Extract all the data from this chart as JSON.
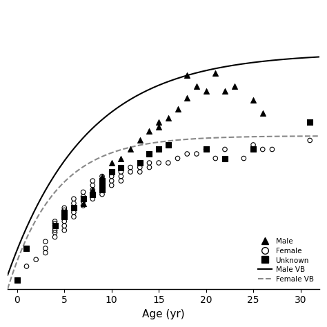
{
  "title": "",
  "xlabel": "Age (yr)",
  "ylabel": "",
  "xlim": [
    -1,
    32
  ],
  "ylim": [
    0,
    125
  ],
  "xticks": [
    0,
    5,
    10,
    15,
    20,
    25,
    30
  ],
  "background_color": "#ffffff",
  "male_points": [
    [
      7,
      38
    ],
    [
      8,
      44
    ],
    [
      9,
      50
    ],
    [
      10,
      52
    ],
    [
      10,
      56
    ],
    [
      11,
      58
    ],
    [
      12,
      62
    ],
    [
      13,
      66
    ],
    [
      14,
      70
    ],
    [
      15,
      72
    ],
    [
      15,
      74
    ],
    [
      16,
      76
    ],
    [
      17,
      80
    ],
    [
      18,
      85
    ],
    [
      18,
      95
    ],
    [
      19,
      90
    ],
    [
      20,
      88
    ],
    [
      21,
      96
    ],
    [
      22,
      88
    ],
    [
      23,
      90
    ],
    [
      25,
      84
    ],
    [
      26,
      78
    ]
  ],
  "female_points": [
    [
      1,
      10
    ],
    [
      2,
      13
    ],
    [
      3,
      16
    ],
    [
      3,
      18
    ],
    [
      3,
      21
    ],
    [
      4,
      23
    ],
    [
      4,
      25
    ],
    [
      4,
      26
    ],
    [
      4,
      28
    ],
    [
      4,
      29
    ],
    [
      4,
      30
    ],
    [
      5,
      26
    ],
    [
      5,
      28
    ],
    [
      5,
      30
    ],
    [
      5,
      32
    ],
    [
      5,
      33
    ],
    [
      5,
      35
    ],
    [
      5,
      36
    ],
    [
      6,
      32
    ],
    [
      6,
      34
    ],
    [
      6,
      36
    ],
    [
      6,
      38
    ],
    [
      6,
      40
    ],
    [
      7,
      37
    ],
    [
      7,
      39
    ],
    [
      7,
      41
    ],
    [
      7,
      43
    ],
    [
      8,
      40
    ],
    [
      8,
      42
    ],
    [
      8,
      44
    ],
    [
      8,
      46
    ],
    [
      8,
      48
    ],
    [
      9,
      42
    ],
    [
      9,
      44
    ],
    [
      9,
      46
    ],
    [
      9,
      48
    ],
    [
      9,
      50
    ],
    [
      10,
      46
    ],
    [
      10,
      48
    ],
    [
      10,
      50
    ],
    [
      10,
      52
    ],
    [
      11,
      48
    ],
    [
      11,
      50
    ],
    [
      11,
      52
    ],
    [
      12,
      52
    ],
    [
      12,
      54
    ],
    [
      13,
      52
    ],
    [
      13,
      54
    ],
    [
      14,
      54
    ],
    [
      14,
      56
    ],
    [
      15,
      56
    ],
    [
      16,
      56
    ],
    [
      17,
      58
    ],
    [
      18,
      60
    ],
    [
      19,
      60
    ],
    [
      20,
      62
    ],
    [
      21,
      58
    ],
    [
      22,
      62
    ],
    [
      24,
      58
    ],
    [
      25,
      64
    ],
    [
      26,
      62
    ],
    [
      27,
      62
    ],
    [
      31,
      66
    ]
  ],
  "unknown_points": [
    [
      0,
      4
    ],
    [
      1,
      18
    ],
    [
      4,
      28
    ],
    [
      5,
      32
    ],
    [
      5,
      34
    ],
    [
      6,
      36
    ],
    [
      7,
      40
    ],
    [
      8,
      42
    ],
    [
      9,
      44
    ],
    [
      9,
      46
    ],
    [
      9,
      48
    ],
    [
      10,
      52
    ],
    [
      11,
      54
    ],
    [
      13,
      56
    ],
    [
      14,
      60
    ],
    [
      15,
      62
    ],
    [
      16,
      64
    ],
    [
      20,
      62
    ],
    [
      22,
      58
    ],
    [
      25,
      62
    ],
    [
      31,
      74
    ]
  ],
  "male_vb": {
    "Linf": 105,
    "K": 0.12,
    "t0": -1.5
  },
  "female_vb": {
    "Linf": 68,
    "K": 0.2,
    "t0": -1.0
  },
  "legend_labels": [
    "Male",
    "Female",
    "Unknown",
    "Male VB",
    "Female VB"
  ],
  "marker_color": "#000000",
  "line_color_male": "#000000",
  "line_color_female": "#888888"
}
